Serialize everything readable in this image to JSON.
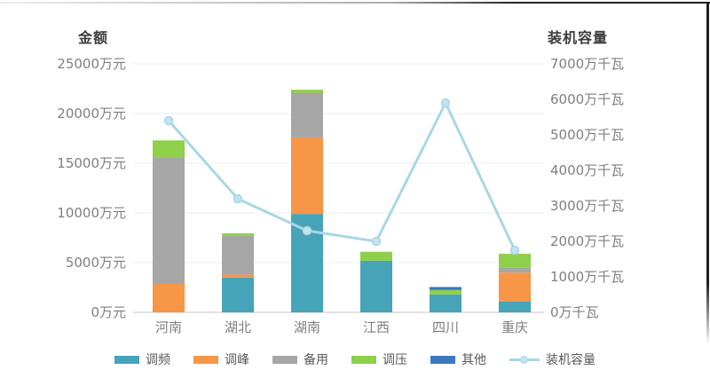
{
  "chart_data": {
    "type": "combo-stacked-bar-line",
    "categories": [
      "河南",
      "湖北",
      "湖南",
      "江西",
      "四川",
      "重庆"
    ],
    "bar_series": [
      {
        "name": "调频",
        "color": "#47a3b8",
        "values": [
          0,
          3500,
          9900,
          5200,
          1800,
          1100
        ]
      },
      {
        "name": "调峰",
        "color": "#f79646",
        "values": [
          2900,
          300,
          7700,
          0,
          0,
          2900
        ]
      },
      {
        "name": "备用",
        "color": "#a6a6a6",
        "values": [
          12700,
          3900,
          4500,
          0,
          0,
          500
        ]
      },
      {
        "name": "调压",
        "color": "#8ed04a",
        "values": [
          1700,
          250,
          300,
          900,
          450,
          1400
        ]
      },
      {
        "name": "其他",
        "color": "#3d79bd",
        "values": [
          0,
          0,
          0,
          0,
          300,
          0
        ]
      }
    ],
    "line_series": {
      "name": "装机容量",
      "axis": "right",
      "color": "#a9d7e5",
      "marker_fill": "#c2e4ee",
      "values": [
        5400,
        3200,
        2300,
        2000,
        5900,
        1750
      ]
    },
    "left_axis": {
      "title": "金额",
      "unit": "万元",
      "min": 0,
      "max": 25000,
      "tick_step": 5000,
      "tick_labels": [
        "25000万元",
        "20000万元",
        "15000万元",
        "10000万元",
        "5000万元",
        "0万元"
      ]
    },
    "right_axis": {
      "title": "装机容量",
      "unit": "万千瓦",
      "min": 0,
      "max": 7000,
      "tick_step": 1000,
      "tick_labels": [
        "7000万千瓦",
        "6000万千瓦",
        "5000万千瓦",
        "4000万千瓦",
        "3000万千瓦",
        "2000万千瓦",
        "1000万千瓦",
        "0万千瓦"
      ]
    },
    "grid": true,
    "legend_position": "bottom",
    "colors": {
      "grid_line": "#ececec",
      "baseline": "#d9d9d9",
      "tick_text": "#7f7f7f",
      "category_text": "#7f7f7f",
      "legend_text": "#595959",
      "axis_title_text": "#3d3d3d",
      "background": "#ffffff"
    }
  }
}
